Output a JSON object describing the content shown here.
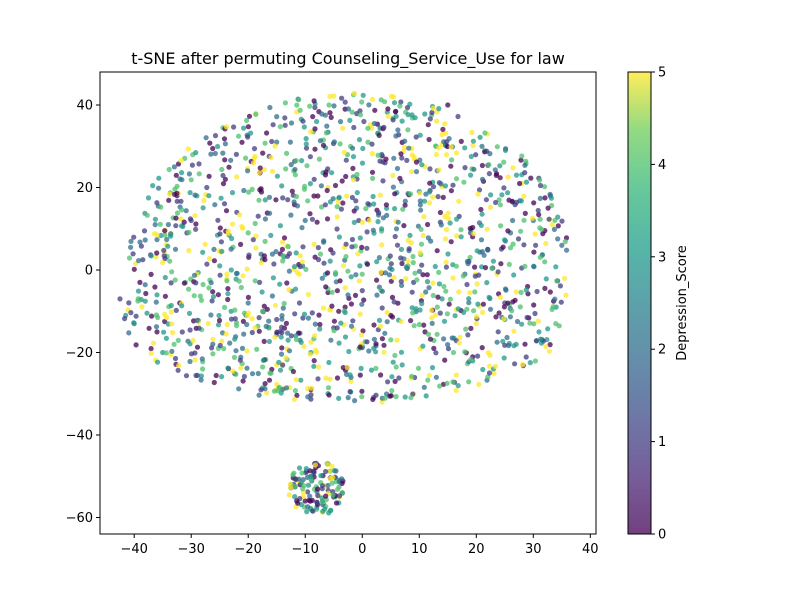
{
  "chart_data": {
    "type": "scatter",
    "title": "t-SNE after permuting Counseling_Service_Use for law",
    "xlabel": "",
    "ylabel": "",
    "xlim": [
      -46,
      41
    ],
    "ylim": [
      -64,
      48
    ],
    "xticks": [
      -40,
      -30,
      -20,
      -10,
      0,
      10,
      20,
      30,
      40
    ],
    "yticks": [
      -60,
      -40,
      -20,
      0,
      20,
      40
    ],
    "xtick_labels": [
      "−40",
      "−30",
      "−20",
      "−10",
      "0",
      "10",
      "20",
      "30",
      "40"
    ],
    "ytick_labels": [
      "−60",
      "−40",
      "−20",
      "0",
      "20",
      "40"
    ],
    "grid": false,
    "colormap": "viridis",
    "color_variable": "Depression_Score",
    "colorbar": {
      "label": "Depression_Score",
      "min": 0,
      "max": 5,
      "ticks": [
        0,
        1,
        2,
        3,
        4,
        5
      ],
      "tick_labels": [
        "0",
        "1",
        "2",
        "3",
        "4",
        "5"
      ]
    },
    "clusters": [
      {
        "name": "main",
        "center": [
          0,
          5
        ],
        "x_span": [
          -43,
          36
        ],
        "y_span": [
          -32,
          43
        ],
        "approx_points": 1400
      },
      {
        "name": "small",
        "center": [
          -8,
          -53
        ],
        "x_span": [
          -13,
          -3
        ],
        "y_span": [
          -59,
          -46
        ],
        "approx_points": 120
      }
    ],
    "points": [
      [
        -42.5,
        -7,
        1
      ],
      [
        -41.5,
        -11,
        3
      ],
      [
        -40,
        -13,
        2
      ],
      [
        -39,
        -3,
        0
      ],
      [
        -38.5,
        2.5,
        1
      ],
      [
        -36,
        -6,
        3
      ],
      [
        -35,
        -20,
        3
      ],
      [
        -34,
        11,
        2
      ],
      [
        -33,
        -18,
        4
      ],
      [
        -32,
        -8,
        0
      ],
      [
        -30,
        12,
        1
      ],
      [
        -29,
        18,
        3
      ],
      [
        -28,
        -24,
        4
      ],
      [
        -27,
        -13,
        5
      ],
      [
        -26,
        5,
        2
      ],
      [
        -24,
        22,
        0
      ],
      [
        -23,
        -10,
        3
      ],
      [
        -22,
        14,
        1
      ],
      [
        -21,
        -19,
        2
      ],
      [
        -20,
        9,
        4
      ],
      [
        -19,
        27,
        5
      ],
      [
        -18,
        -3,
        1
      ],
      [
        -17,
        17,
        3
      ],
      [
        -16,
        -25,
        4
      ],
      [
        -15,
        31,
        2
      ],
      [
        -14,
        5,
        0
      ],
      [
        -13,
        -17,
        3
      ],
      [
        -12,
        24,
        4
      ],
      [
        -11,
        -8,
        1
      ],
      [
        -10,
        12,
        2
      ],
      [
        -9,
        -29,
        0
      ],
      [
        -8,
        36,
        3
      ],
      [
        -7,
        -2,
        2
      ],
      [
        -6,
        20,
        5
      ],
      [
        -5,
        -14,
        1
      ],
      [
        -4,
        8,
        3
      ],
      [
        -3,
        39,
        0
      ],
      [
        -2,
        -27,
        5
      ],
      [
        -1,
        15,
        2
      ],
      [
        0,
        -5,
        1
      ],
      [
        1,
        31,
        4
      ],
      [
        2,
        -19,
        3
      ],
      [
        3,
        3,
        2
      ],
      [
        3.5,
        -32,
        5
      ],
      [
        4,
        26,
        1
      ],
      [
        5,
        -11,
        0
      ],
      [
        5.5,
        42,
        5
      ],
      [
        6,
        10,
        2
      ],
      [
        7,
        -23,
        3
      ],
      [
        8,
        34,
        4
      ],
      [
        9,
        -3,
        1
      ],
      [
        10,
        19,
        3
      ],
      [
        11,
        -15,
        0
      ],
      [
        12,
        7,
        2
      ],
      [
        13,
        28,
        5
      ],
      [
        14,
        -7,
        3
      ],
      [
        15,
        40,
        0
      ],
      [
        16,
        -20,
        4
      ],
      [
        17,
        13,
        1
      ],
      [
        18,
        -1,
        2
      ],
      [
        19,
        23,
        3
      ],
      [
        20,
        -13,
        5
      ],
      [
        21,
        30,
        2
      ],
      [
        22,
        5,
        0
      ],
      [
        23,
        -24,
        3
      ],
      [
        24,
        17,
        4
      ],
      [
        25,
        -8,
        1
      ],
      [
        26,
        9,
        2
      ],
      [
        27,
        -18,
        3
      ],
      [
        28,
        21,
        5
      ],
      [
        29,
        -4,
        0
      ],
      [
        30,
        12,
        2
      ],
      [
        31,
        -15,
        3
      ],
      [
        32,
        2,
        4
      ],
      [
        33,
        18,
        1
      ],
      [
        34,
        -9,
        3
      ],
      [
        35,
        6,
        2
      ],
      [
        35.5,
        -2,
        5
      ],
      [
        -36,
        -15,
        0
      ],
      [
        -31,
        -3,
        4
      ],
      [
        -25,
        1,
        3
      ],
      [
        -20,
        -8,
        2
      ],
      [
        -15,
        -12,
        1
      ],
      [
        -9,
        -20,
        3
      ],
      [
        -3,
        -9,
        0
      ],
      [
        2,
        16,
        3
      ],
      [
        8,
        1,
        4
      ],
      [
        13,
        -26,
        2
      ],
      [
        19,
        9,
        1
      ],
      [
        25,
        -12,
        3
      ],
      [
        -12,
        -52,
        1
      ],
      [
        -11,
        -48,
        3
      ],
      [
        -10,
        -56,
        0
      ],
      [
        -9,
        -50,
        2
      ],
      [
        -8,
        -58,
        4
      ],
      [
        -7,
        -53,
        1
      ],
      [
        -6,
        -47,
        3
      ],
      [
        -5,
        -55,
        0
      ],
      [
        -4,
        -51,
        2
      ],
      [
        -3.5,
        -54,
        1
      ]
    ]
  }
}
